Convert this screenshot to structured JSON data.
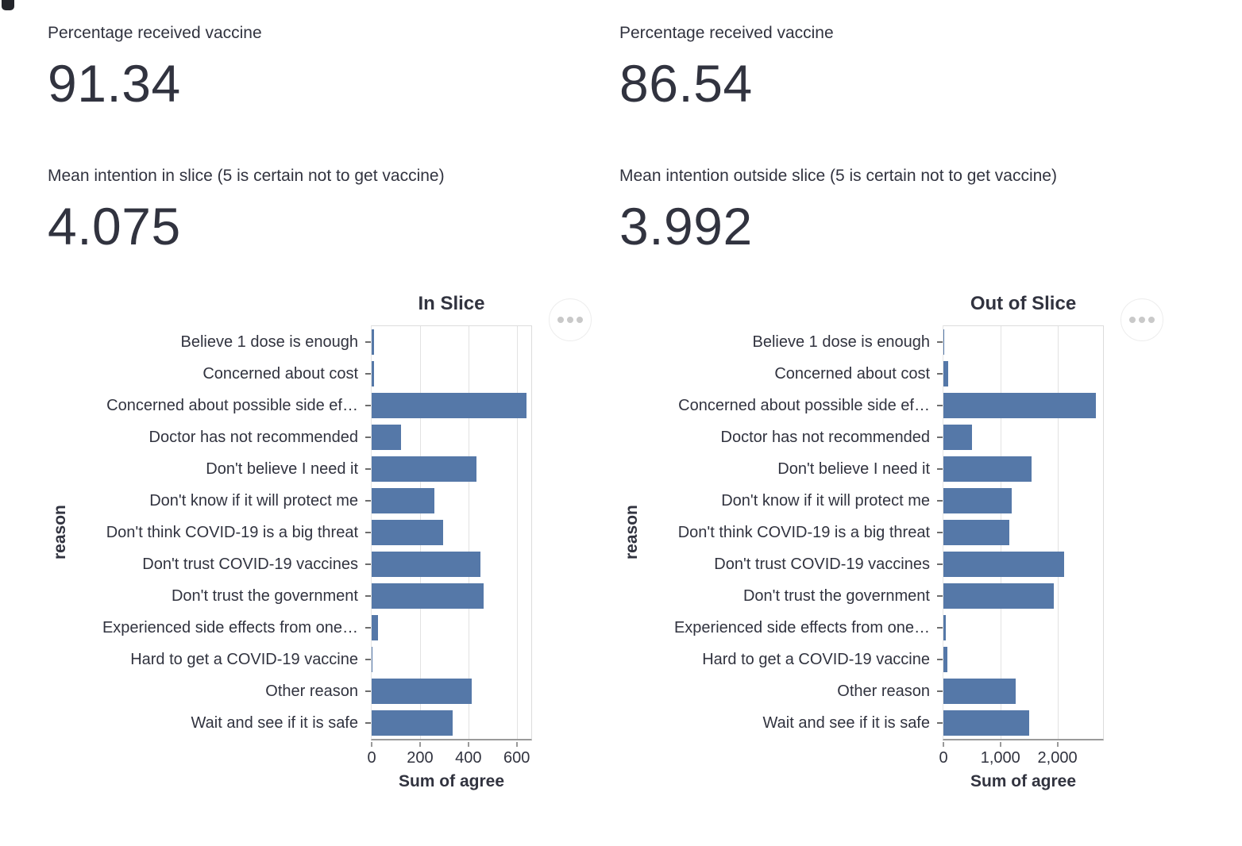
{
  "colors": {
    "bar": "#5578a8",
    "text": "#31333f",
    "axis_line": "#9a9a9a",
    "gridline": "#e2e2e2",
    "view_border": "#dcdcdc",
    "menu_dot": "#c9c9c9"
  },
  "panels": [
    {
      "metrics": [
        {
          "label": "Percentage received vaccine",
          "value": "91.34"
        },
        {
          "label": "Mean intention in slice (5 is certain not to get vaccine)",
          "value": "4.075"
        }
      ],
      "menu_icon": "ellipsis-icon"
    },
    {
      "metrics": [
        {
          "label": "Percentage received vaccine",
          "value": "86.54"
        },
        {
          "label": "Mean intention outside slice (5 is certain not to get vaccine)",
          "value": "3.992"
        }
      ],
      "menu_icon": "ellipsis-icon"
    }
  ],
  "chart_data": [
    {
      "type": "bar",
      "orientation": "horizontal",
      "title": "In Slice",
      "xlabel": "Sum of agree",
      "ylabel": "reason",
      "xlim": [
        0,
        660
      ],
      "x_tick_values": [
        0,
        200,
        400,
        600
      ],
      "x_tick_labels": [
        "0",
        "200",
        "400",
        "600"
      ],
      "grid": true,
      "categories": [
        "Believe 1 dose is enough",
        "Concerned about cost",
        "Concerned about possible side ef…",
        "Doctor has not recommended",
        "Don't believe I need it",
        "Don't know if it will protect me",
        "Don't think COVID-19 is a big threat",
        "Don't trust COVID-19 vaccines",
        "Don't trust the government",
        "Experienced side effects from one…",
        "Hard to get a COVID-19 vaccine",
        "Other reason",
        "Wait and see if it is safe"
      ],
      "values": [
        9,
        10,
        640,
        120,
        432,
        258,
        297,
        450,
        462,
        25,
        4,
        414,
        334
      ]
    },
    {
      "type": "bar",
      "orientation": "horizontal",
      "title": "Out of Slice",
      "xlabel": "Sum of agree",
      "ylabel": "reason",
      "xlim": [
        0,
        2800
      ],
      "x_tick_values": [
        0,
        1000,
        2000
      ],
      "x_tick_labels": [
        "0",
        "1,000",
        "2,000"
      ],
      "grid": true,
      "categories": [
        "Believe 1 dose is enough",
        "Concerned about cost",
        "Concerned about possible side ef…",
        "Doctor has not recommended",
        "Don't believe I need it",
        "Don't know if it will protect me",
        "Don't think COVID-19 is a big threat",
        "Don't trust COVID-19 vaccines",
        "Don't trust the government",
        "Experienced side effects from one…",
        "Hard to get a COVID-19 vaccine",
        "Other reason",
        "Wait and see if it is safe"
      ],
      "values": [
        20,
        90,
        2680,
        500,
        1540,
        1200,
        1150,
        2120,
        1930,
        45,
        65,
        1265,
        1510
      ]
    }
  ]
}
